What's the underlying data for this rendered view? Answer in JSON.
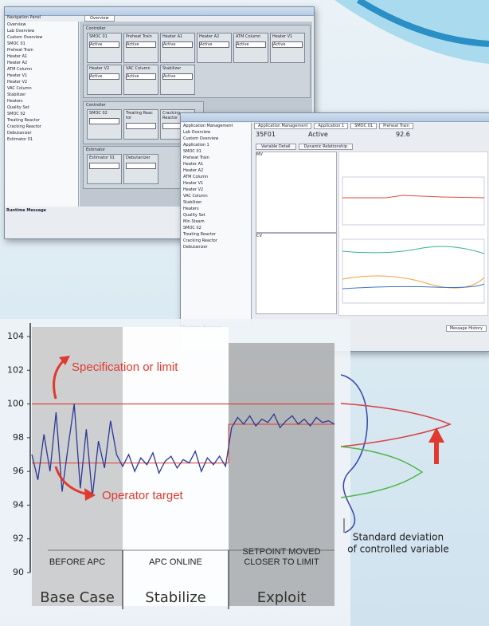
{
  "screens": {
    "window1": {
      "panel_title": "Navigation Panel",
      "tab": "Overview",
      "nav": [
        "Overview",
        "Lab Overview",
        "Custom Overview",
        "SMOC 01",
        "Preheat Train",
        "Heater A1",
        "Heater A2",
        "ATM Column",
        "Heater V1",
        "Heater V2",
        "VAC Column",
        "Stabilizer",
        "Heaters",
        "Quality Set",
        "SMOC 02",
        "Treating Reactor",
        "Cracking Reactor",
        "Debutanizer",
        "Estimator 01"
      ],
      "group": "Controller",
      "tiles": [
        "SMOC 01",
        "Preheat Train",
        "Heater A1",
        "Heater A2",
        "ATM Column",
        "Heater V1",
        "Heater V2",
        "VAC Column",
        "Stabilizer"
      ],
      "tile_status": "Active",
      "group2": "Controller",
      "tiles2": [
        "SMOC 02",
        "Treating Reac tor",
        "Cracking Reactor"
      ],
      "group3": "Estimator",
      "tiles3": [
        "Estimator 01",
        "Debutanizer"
      ],
      "runtime": "Runtime Message"
    },
    "window2": {
      "tabs": [
        "Application Management",
        "Application 1",
        "SMOC 01",
        "Preheat Train"
      ],
      "controller": "35F01",
      "status": "Active",
      "percent": "92.6",
      "subtabs": [
        "Variable Detail",
        "Dynamic Relationship"
      ],
      "mv": "MV",
      "cv": "CV",
      "nav": [
        "Application Management",
        "Lab Overview",
        "Custom Overview",
        "Application 1",
        "SMOC 01",
        "Preheat Train",
        "Heater A1",
        "Heater A2",
        "ATM Column",
        "Heater V1",
        "Heater V2",
        "VAC Column",
        "Stabilizer",
        "Heaters",
        "Quality Set",
        "Min Steam",
        "SMOC 02",
        "Treating Reactor",
        "Cracking Reactor",
        "Debutanizer"
      ],
      "runtime": "Runtime Message",
      "history": "Message History"
    }
  },
  "chart_data": {
    "type": "line",
    "x": [
      0,
      2,
      4,
      6,
      8,
      10,
      12,
      14,
      16,
      18,
      20,
      22,
      24,
      26,
      28,
      30,
      32,
      34,
      36,
      38,
      40,
      42,
      44,
      46,
      48,
      50,
      52,
      54,
      56,
      58,
      60,
      62,
      64,
      66,
      68,
      70,
      72,
      74,
      76,
      78,
      80,
      82,
      84,
      86,
      88,
      90,
      92,
      94,
      96,
      98,
      100
    ],
    "series": [
      {
        "color": "#2b3896",
        "values": [
          97,
          95.5,
          98.2,
          96,
          99.5,
          94.8,
          97.5,
          100,
          95,
          98.5,
          94.5,
          97.8,
          96.2,
          99,
          97,
          96.3,
          97,
          96,
          96.8,
          96.4,
          97.1,
          95.9,
          96.6,
          96.9,
          96.2,
          96.7,
          96.5,
          97.2,
          96,
          96.8,
          96.4,
          96.9,
          96.3,
          98.6,
          99.2,
          98.8,
          99.3,
          98.7,
          99.1,
          98.9,
          99.4,
          98.6,
          99,
          99.3,
          98.8,
          99.1,
          98.7,
          99.2,
          98.9,
          99,
          98.8
        ]
      }
    ],
    "xlim": [
      0,
      100
    ],
    "ylim": [
      90,
      104
    ],
    "yticks": [
      90,
      92,
      94,
      96,
      98,
      100,
      102,
      104
    ],
    "spec_limit": 100,
    "limit_color": "#e03a2e",
    "targets": [
      {
        "start": 0,
        "end": 65,
        "value": 96.5
      },
      {
        "start": 65,
        "end": 100,
        "value": 98.8
      }
    ],
    "phases": [
      {
        "label": [
          "BEFORE APC"
        ],
        "name": "Base Case",
        "start": 0,
        "end": 30
      },
      {
        "label": [
          "APC ONLINE"
        ],
        "name": "Stabilize",
        "start": 30,
        "end": 65
      },
      {
        "label": [
          "SETPOINT MOVED",
          "CLOSER TO LIMIT"
        ],
        "name": "Exploit",
        "start": 65,
        "end": 100
      }
    ],
    "annotations": {
      "limit": "Specification or limit",
      "target": "Operator target",
      "deviation": [
        "Standard deviation",
        "of controlled variable"
      ]
    }
  }
}
